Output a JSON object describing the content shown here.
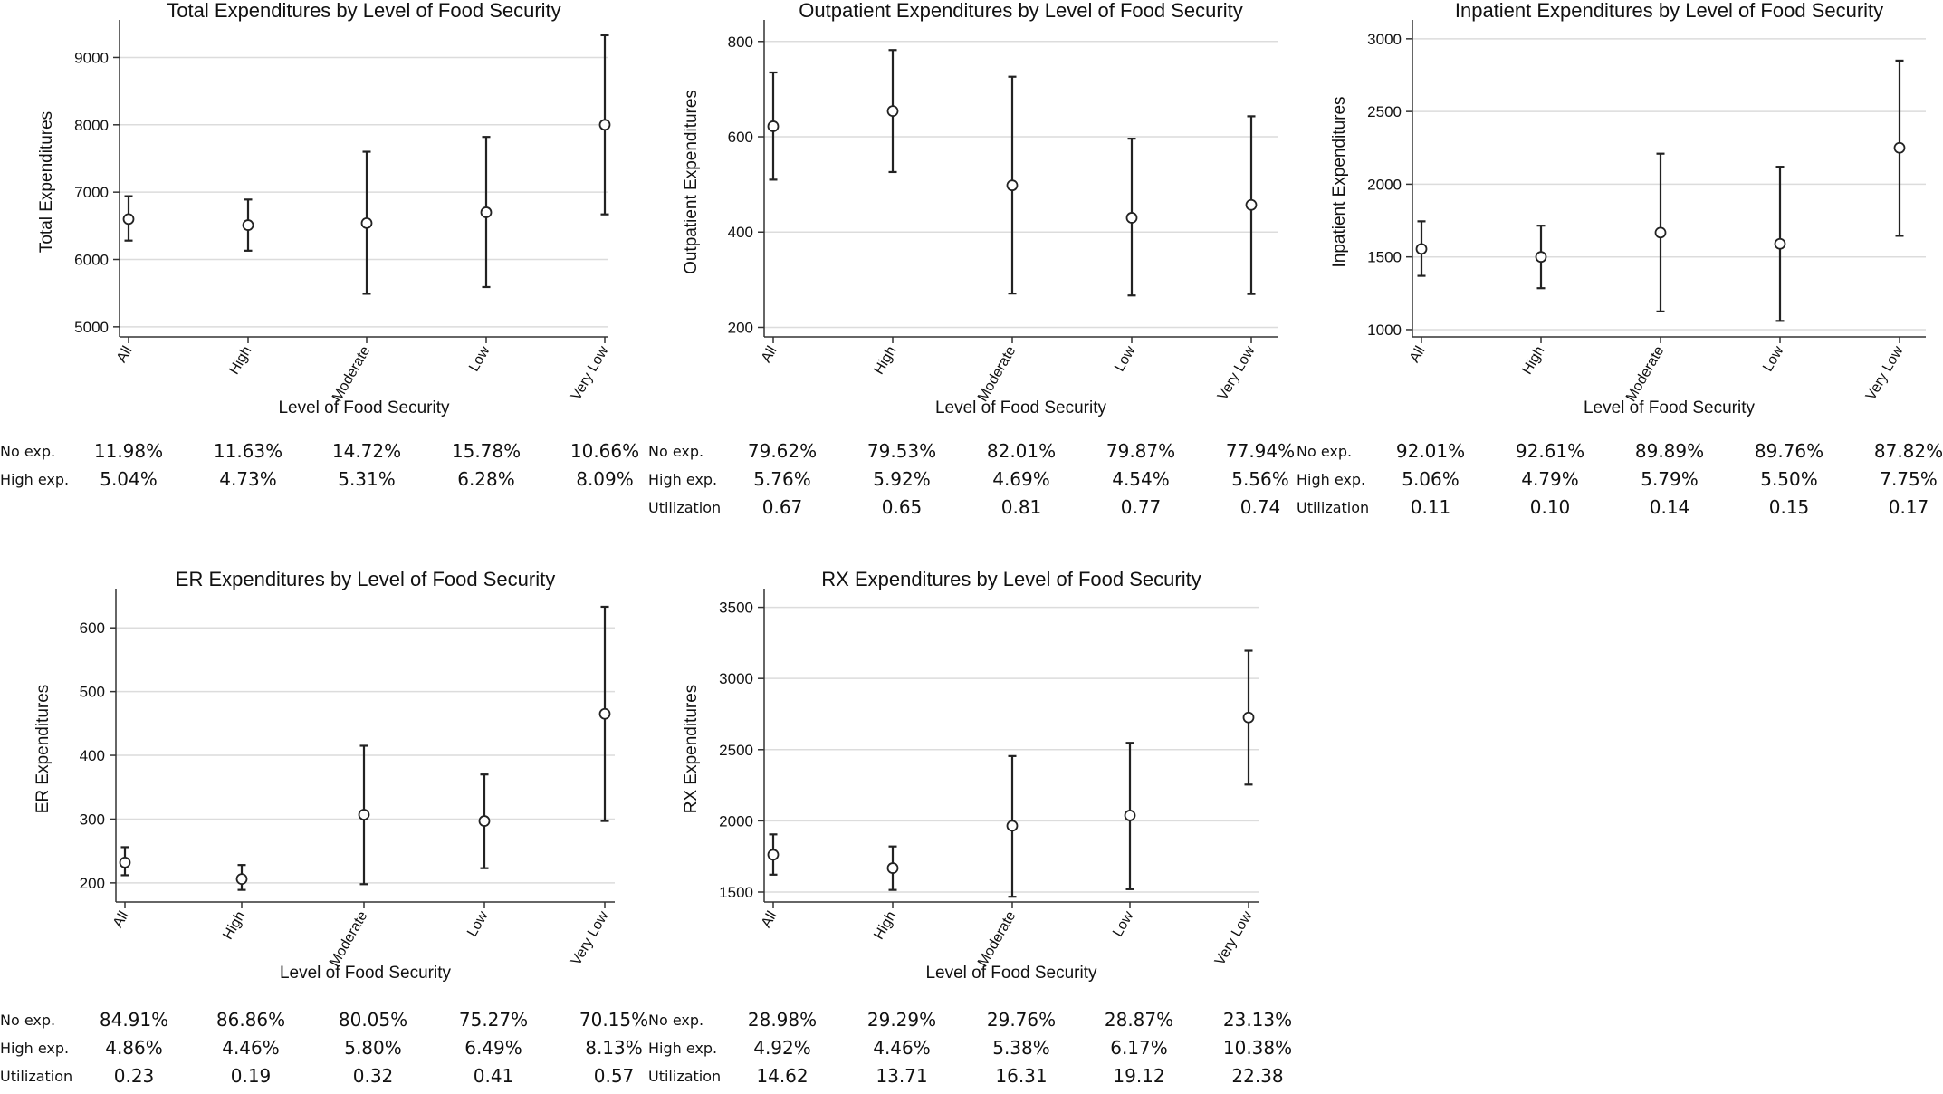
{
  "chart_data": [
    {
      "type": "errorbar",
      "title": "Total Expenditures by Level of Food Security",
      "xlabel": "Level of Food Security",
      "ylabel": "Total Expenditures",
      "categories": [
        "All",
        "High",
        "Moderate",
        "Low",
        "Very Low"
      ],
      "values": [
        6600,
        6510,
        6540,
        6700,
        8000
      ],
      "lower": [
        6280,
        6130,
        5490,
        5590,
        6670
      ],
      "upper": [
        6940,
        6890,
        7600,
        7820,
        9330
      ],
      "yticks": [
        5000,
        6000,
        7000,
        8000,
        9000
      ],
      "ylim": [
        4850,
        9450
      ],
      "grid": true,
      "stats": [
        {
          "label": "No exp.",
          "values": [
            "11.98%",
            "11.63%",
            "14.72%",
            "15.78%",
            "10.66%"
          ]
        },
        {
          "label": "High exp.",
          "values": [
            "5.04%",
            "4.73%",
            "5.31%",
            "6.28%",
            "8.09%"
          ]
        }
      ]
    },
    {
      "type": "errorbar",
      "title": "Outpatient Expenditures by Level of Food Security",
      "xlabel": "Level of Food Security",
      "ylabel": "Outpatient Expenditures",
      "categories": [
        "All",
        "High",
        "Moderate",
        "Low",
        "Very Low"
      ],
      "values": [
        622,
        654,
        498,
        430,
        457
      ],
      "lower": [
        510,
        526,
        271,
        267,
        270
      ],
      "upper": [
        735,
        782,
        726,
        596,
        643
      ],
      "yticks": [
        200,
        400,
        600,
        800
      ],
      "ylim": [
        180,
        830
      ],
      "grid": true,
      "stats": [
        {
          "label": "No exp.",
          "values": [
            "79.62%",
            "79.53%",
            "82.01%",
            "79.87%",
            "77.94%"
          ]
        },
        {
          "label": "High exp.",
          "values": [
            "5.76%",
            "5.92%",
            "4.69%",
            "4.54%",
            "5.56%"
          ]
        },
        {
          "label": "Utilization",
          "values": [
            "0.67",
            "0.65",
            "0.81",
            "0.77",
            "0.74"
          ]
        }
      ]
    },
    {
      "type": "errorbar",
      "title": "Inpatient Expenditures by Level of Food Security",
      "xlabel": "Level of Food Security",
      "ylabel": "Inpatient Expenditures",
      "categories": [
        "All",
        "High",
        "Moderate",
        "Low",
        "Very Low"
      ],
      "values": [
        1555,
        1500,
        1667,
        1590,
        2250
      ],
      "lower": [
        1370,
        1285,
        1125,
        1060,
        1645
      ],
      "upper": [
        1745,
        1715,
        2210,
        2120,
        2850
      ],
      "yticks": [
        1000,
        1500,
        2000,
        2500,
        3000
      ],
      "ylim": [
        950,
        3080
      ],
      "grid": true,
      "stats": [
        {
          "label": "No exp.",
          "values": [
            "92.01%",
            "92.61%",
            "89.89%",
            "89.76%",
            "87.82%"
          ]
        },
        {
          "label": "High exp.",
          "values": [
            "5.06%",
            "4.79%",
            "5.79%",
            "5.50%",
            "7.75%"
          ]
        },
        {
          "label": "Utilization",
          "values": [
            "0.11",
            "0.10",
            "0.14",
            "0.15",
            "0.17"
          ]
        }
      ]
    },
    {
      "type": "errorbar",
      "title": "ER Expenditures by Level of Food Security",
      "xlabel": "Level of Food Security",
      "ylabel": "ER Expenditures",
      "categories": [
        "All",
        "High",
        "Moderate",
        "Low",
        "Very Low"
      ],
      "values": [
        232,
        206,
        307,
        297,
        465
      ],
      "lower": [
        212,
        189,
        198,
        223,
        297
      ],
      "upper": [
        256,
        228,
        415,
        370,
        633
      ],
      "yticks": [
        200,
        300,
        400,
        500,
        600
      ],
      "ylim": [
        170,
        650
      ],
      "grid": true,
      "stats": [
        {
          "label": "No exp.",
          "values": [
            "84.91%",
            "86.86%",
            "80.05%",
            "75.27%",
            "70.15%"
          ]
        },
        {
          "label": "High exp.",
          "values": [
            "4.86%",
            "4.46%",
            "5.80%",
            "6.49%",
            "8.13%"
          ]
        },
        {
          "label": "Utilization",
          "values": [
            "0.23",
            "0.19",
            "0.32",
            "0.41",
            "0.57"
          ]
        }
      ]
    },
    {
      "type": "errorbar",
      "title": "RX Expenditures by Level of Food Security",
      "xlabel": "Level of Food Security",
      "ylabel": "RX Expenditures",
      "categories": [
        "All",
        "High",
        "Moderate",
        "Low",
        "Very Low"
      ],
      "values": [
        1762,
        1668,
        1965,
        2038,
        2726
      ],
      "lower": [
        1622,
        1515,
        1467,
        1520,
        2255
      ],
      "upper": [
        1905,
        1820,
        2455,
        2548,
        3195
      ],
      "yticks": [
        1500,
        2000,
        2500,
        3000,
        3500
      ],
      "ylim": [
        1430,
        3580
      ],
      "grid": true,
      "stats": [
        {
          "label": "No exp.",
          "values": [
            "28.98%",
            "29.29%",
            "29.76%",
            "28.87%",
            "23.13%"
          ]
        },
        {
          "label": "High exp.",
          "values": [
            "4.92%",
            "4.46%",
            "5.38%",
            "6.17%",
            "10.38%"
          ]
        },
        {
          "label": "Utilization",
          "values": [
            "14.62",
            "13.71",
            "16.31",
            "19.12",
            "22.38"
          ]
        }
      ]
    }
  ]
}
